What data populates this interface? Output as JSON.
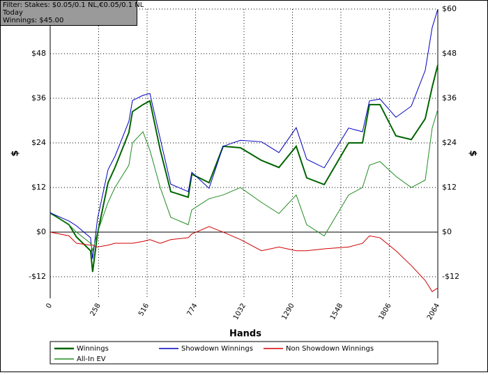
{
  "chart_data": {
    "type": "line",
    "filter_lines": [
      "Filter: Stakes: $0.05/0.1 NL,€0.05/0.1 NL",
      "Today",
      "Winnings: $45.00"
    ],
    "xlabel": "Hands",
    "ylabel": "$",
    "x": [
      0,
      100,
      140,
      215,
      226,
      252,
      308,
      345,
      419,
      438,
      494,
      531,
      586,
      642,
      735,
      754,
      846,
      921,
      1013,
      1125,
      1218,
      1310,
      1366,
      1459,
      1589,
      1663,
      1700,
      1756,
      1841,
      1923,
      1997,
      2034,
      2064
    ],
    "xlim": [
      0,
      2064
    ],
    "xticks": [
      0,
      258,
      516,
      774,
      1032,
      1290,
      1548,
      1806,
      2064
    ],
    "ylim": [
      -17.8,
      60
    ],
    "yticks": [
      {
        "value": -12,
        "label": "-$12"
      },
      {
        "value": 0,
        "label": "$0"
      },
      {
        "value": 12,
        "label": "$12"
      },
      {
        "value": 24,
        "label": "$24"
      },
      {
        "value": 36,
        "label": "$36"
      },
      {
        "value": 48,
        "label": "$48"
      },
      {
        "value": 60,
        "label": "$60"
      }
    ],
    "grid": true,
    "series": [
      {
        "name": "Winnings",
        "color": "#006400",
        "width": 2,
        "values": [
          5.2,
          2,
          -1.3,
          -5,
          -10.7,
          -0.4,
          13.3,
          17.4,
          26.8,
          32.4,
          34.3,
          35.3,
          22.1,
          10.9,
          9.4,
          15.6,
          13.3,
          23.1,
          22.7,
          19.3,
          17.4,
          23.1,
          14.6,
          12.8,
          24,
          24,
          34.3,
          34.3,
          25.9,
          24.9,
          30.5,
          39,
          45
        ]
      },
      {
        "name": "Showdown Winnings",
        "color": "#0000c0",
        "width": 1,
        "values": [
          5.2,
          3,
          1.7,
          -1.5,
          -7.2,
          3.6,
          16.8,
          20.4,
          29.8,
          35.4,
          36.8,
          37.3,
          25.1,
          12.9,
          10.9,
          16.1,
          11.8,
          23.1,
          24.7,
          24.3,
          21.4,
          28.1,
          19.6,
          17.3,
          28,
          27,
          35.3,
          35.8,
          30.9,
          33.9,
          43.5,
          55,
          60
        ]
      },
      {
        "name": "Non Showdown Winnings",
        "color": "#d00000",
        "width": 1,
        "values": [
          0,
          -1,
          -3,
          -3.5,
          -3.5,
          -4,
          -3.5,
          -3,
          -3,
          -3,
          -2.5,
          -2,
          -3,
          -2,
          -1.5,
          -0.5,
          1.5,
          0,
          -2,
          -5,
          -4,
          -5,
          -5,
          -4.5,
          -4,
          -3,
          -1,
          -1.5,
          -5,
          -9,
          -13,
          -16,
          -15
        ]
      },
      {
        "name": "All-In EV",
        "color": "#228b22",
        "width": 1,
        "values": [
          5,
          2,
          0,
          -3,
          -5,
          0,
          8,
          12,
          18,
          24,
          27,
          22,
          12,
          4,
          2,
          6,
          9,
          10,
          12,
          8,
          5,
          10,
          2,
          -1,
          10,
          12,
          18,
          19,
          15,
          12,
          14,
          28,
          33
        ]
      }
    ]
  }
}
